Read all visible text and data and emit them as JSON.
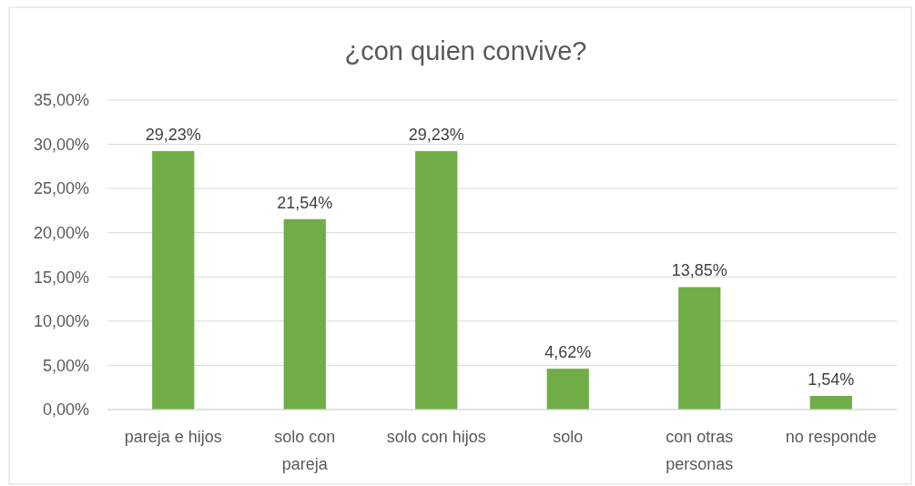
{
  "chart_data": {
    "type": "bar",
    "title": "¿con quien convive?",
    "categories": [
      "pareja e hijos",
      "solo con\npareja",
      "solo con hijos",
      "solo",
      "con otras\npersonas",
      "no responde"
    ],
    "values": [
      29.23,
      21.54,
      29.23,
      4.62,
      13.85,
      1.54
    ],
    "value_labels": [
      "29,23%",
      "21,54%",
      "29,23%",
      "4,62%",
      "13,85%",
      "1,54%"
    ],
    "color": "#70ad47",
    "ylim": [
      0,
      35
    ],
    "yticks": [
      {
        "value": 0,
        "label": "0,00%"
      },
      {
        "value": 5,
        "label": "5,00%"
      },
      {
        "value": 10,
        "label": "10,00%"
      },
      {
        "value": 15,
        "label": "15,00%"
      },
      {
        "value": 20,
        "label": "20,00%"
      },
      {
        "value": 25,
        "label": "25,00%"
      },
      {
        "value": 30,
        "label": "30,00%"
      },
      {
        "value": 35,
        "label": "35,00%"
      }
    ],
    "grid": "y"
  }
}
